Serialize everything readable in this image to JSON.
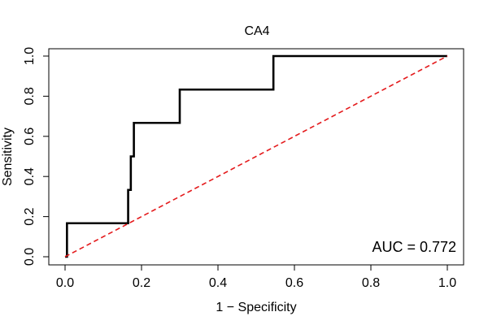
{
  "chart_data": {
    "type": "line",
    "title": "CA4",
    "xlabel": "1 − Specificity",
    "ylabel": "Sensitivity",
    "xlim": [
      0,
      1
    ],
    "ylim": [
      0,
      1
    ],
    "grid": false,
    "xticks": [
      0,
      0.2,
      0.4,
      0.6,
      0.8,
      1
    ],
    "xtick_labels": [
      "0.0",
      "0.2",
      "0.4",
      "0.6",
      "0.8",
      "1.0"
    ],
    "yticks": [
      0,
      0.2,
      0.4,
      0.6,
      0.8,
      1
    ],
    "ytick_labels": [
      "0.0",
      "0.2",
      "0.4",
      "0.6",
      "0.8",
      "1.0"
    ],
    "series": [
      {
        "name": "",
        "style": "step",
        "color": "#000000",
        "x": [
          0.0,
          0.0,
          0.005,
          0.005,
          0.165,
          0.165,
          0.172,
          0.172,
          0.18,
          0.18,
          0.3,
          0.3,
          0.545,
          0.545,
          1.0
        ],
        "y": [
          0.0,
          0.0,
          0.0,
          0.167,
          0.167,
          0.333,
          0.333,
          0.5,
          0.5,
          0.667,
          0.667,
          0.833,
          0.833,
          1.0,
          1.0
        ]
      },
      {
        "name": "",
        "style": "dashed",
        "color": "#e41a1c",
        "x": [
          0,
          1
        ],
        "y": [
          0,
          1
        ]
      }
    ],
    "annotations": [
      {
        "text": "AUC = 0.772"
      }
    ]
  }
}
